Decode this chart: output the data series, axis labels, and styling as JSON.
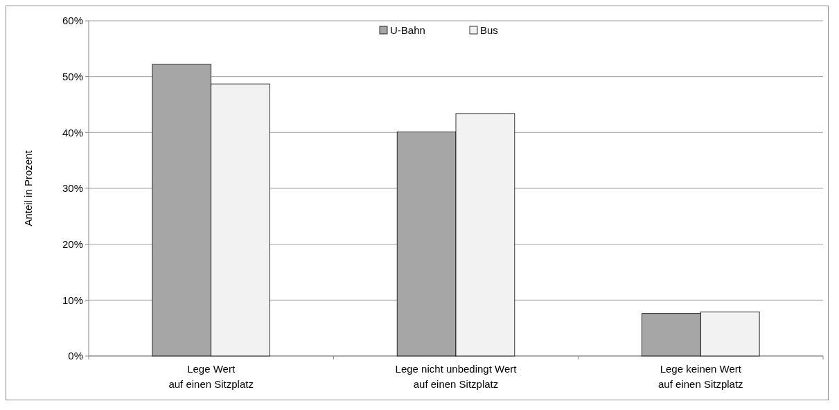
{
  "chart_data": {
    "type": "bar",
    "ylabel": "Anteil in Prozent",
    "categories": [
      "Lege Wert\nauf einen Sitzplatz",
      "Lege nicht unbedingt Wert\nauf einen Sitzplatz",
      "Lege keinen Wert\nauf einen Sitzplatz"
    ],
    "series": [
      {
        "name": "U-Bahn",
        "color": "#a6a6a6",
        "values": [
          52.2,
          40.1,
          7.6
        ]
      },
      {
        "name": "Bus",
        "color": "#f2f2f2",
        "values": [
          48.7,
          43.4,
          7.9
        ]
      }
    ],
    "ylim": [
      0,
      60
    ],
    "yticks": [
      {
        "value": 0,
        "label": "0%"
      },
      {
        "value": 10,
        "label": "10%"
      },
      {
        "value": 20,
        "label": "20%"
      },
      {
        "value": 30,
        "label": "30%"
      },
      {
        "value": 40,
        "label": "40%"
      },
      {
        "value": 50,
        "label": "50%"
      },
      {
        "value": 60,
        "label": "60%"
      }
    ],
    "grid": "y",
    "legend": "top"
  }
}
